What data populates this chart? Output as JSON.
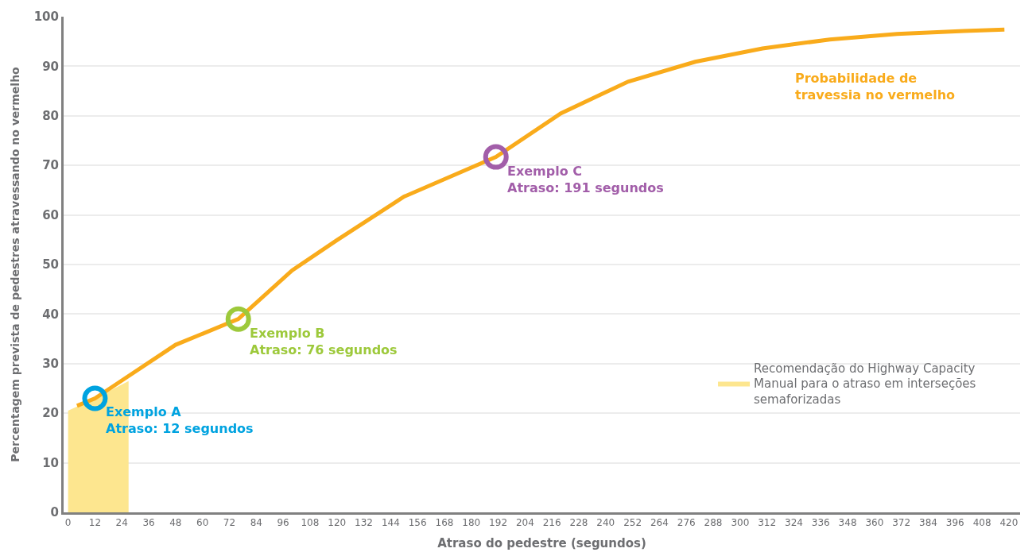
{
  "chart_data": {
    "type": "line",
    "xlabel": "Atraso do pedestre (segundos)",
    "ylabel": "Percentagem prevista de pedestres atravessando no vermelho",
    "xlim": [
      -2,
      425
    ],
    "xticks": [
      0,
      12,
      24,
      36,
      48,
      60,
      72,
      84,
      96,
      108,
      120,
      132,
      144,
      156,
      168,
      180,
      192,
      204,
      216,
      228,
      240,
      252,
      264,
      276,
      288,
      300,
      312,
      324,
      336,
      348,
      360,
      372,
      384,
      396,
      408,
      420
    ],
    "ylim": [
      0,
      100
    ],
    "yticks": [
      0,
      10,
      20,
      30,
      40,
      50,
      60,
      70,
      80,
      90,
      100
    ],
    "grid": "y",
    "legend": "bottom right",
    "line_style": "solid",
    "series": [
      {
        "type": "area",
        "name": "Recomendação do Highway Capacity Manual para o atraso em interseções semaforizadas",
        "color": "#fde68f",
        "x": [
          0,
          12,
          27
        ],
        "values": [
          20.5,
          23,
          26.5
        ]
      },
      {
        "name": "Probabilidade de travessia no vermelho",
        "color": "#f9ab1b",
        "x": [
          4,
          12,
          24,
          48,
          76,
          100,
          120,
          150,
          191,
          220,
          250,
          280,
          310,
          340,
          370,
          400,
          418
        ],
        "values": [
          21.5,
          23,
          26.6,
          33.8,
          39,
          48.8,
          54.9,
          63.7,
          71.7,
          80.5,
          86.9,
          90.9,
          93.6,
          95.4,
          96.5,
          97.1,
          97.4
        ]
      },
      {
        "type": "scatter",
        "marker": "circle",
        "colors": [
          "#00a3e0",
          "#9dc93b",
          "#a25ea9"
        ],
        "x": [
          12,
          76,
          191
        ],
        "values": [
          23,
          39,
          71.7
        ]
      }
    ],
    "annotations": [
      {
        "text": "Exemplo A\nAtraso: 12 segundos",
        "x": 12,
        "y": 23
      },
      {
        "text": "Exemplo B\nAtraso: 76 segundos",
        "x": 76,
        "y": 39
      },
      {
        "text": "Exemplo C\nAtraso: 191 segundos",
        "x": 191,
        "y": 71.7
      }
    ]
  }
}
